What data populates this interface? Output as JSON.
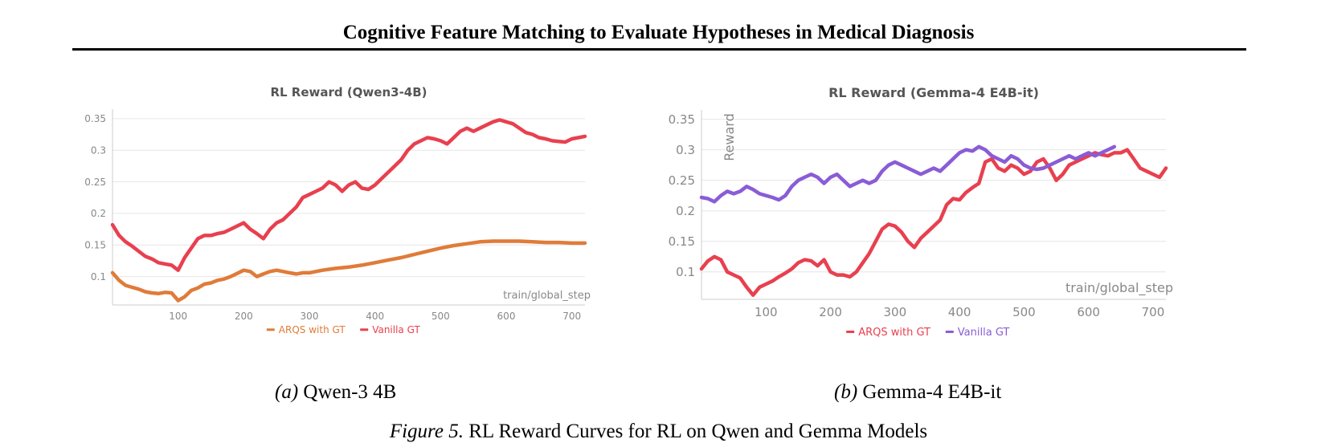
{
  "header": {
    "title": "Cognitive Feature Matching to Evaluate Hypotheses in Medical Diagnosis"
  },
  "subfigures": [
    {
      "tag": "(a)",
      "label": "Qwen-3 4B"
    },
    {
      "tag": "(b)",
      "label": "Gemma-4 E4B-it"
    }
  ],
  "caption": {
    "tag": "Figure 5.",
    "text": "RL Reward Curves for RL on Qwen and Gemma Models"
  },
  "chart_data": [
    {
      "type": "line",
      "title": "RL Reward (Qwen3-4B)",
      "xlabel": "train/global_step",
      "ylabel": "",
      "xlim": [
        0,
        720
      ],
      "ylim": [
        0.055,
        0.36
      ],
      "xticks": [
        100,
        200,
        300,
        400,
        500,
        600,
        700
      ],
      "yticks": [
        0.1,
        0.15,
        0.2,
        0.25,
        0.3,
        0.35
      ],
      "ytick_labels": [
        "0.1",
        "0.15",
        "0.2",
        "0.25",
        "0.3",
        "0.35"
      ],
      "grid": true,
      "legend_position": "bottom-center",
      "series": [
        {
          "name": "ARQS with GT",
          "color": "#e07b39",
          "x": [
            0,
            10,
            20,
            30,
            40,
            50,
            60,
            70,
            80,
            90,
            100,
            110,
            120,
            130,
            140,
            150,
            160,
            170,
            180,
            190,
            200,
            210,
            220,
            230,
            240,
            250,
            260,
            270,
            280,
            290,
            300,
            320,
            340,
            360,
            380,
            400,
            420,
            440,
            460,
            480,
            500,
            520,
            540,
            560,
            580,
            600,
            620,
            640,
            660,
            680,
            700,
            720
          ],
          "y": [
            0.106,
            0.094,
            0.086,
            0.083,
            0.08,
            0.076,
            0.074,
            0.073,
            0.075,
            0.074,
            0.062,
            0.068,
            0.078,
            0.082,
            0.088,
            0.09,
            0.094,
            0.096,
            0.1,
            0.105,
            0.11,
            0.108,
            0.1,
            0.104,
            0.108,
            0.11,
            0.108,
            0.106,
            0.104,
            0.106,
            0.106,
            0.11,
            0.113,
            0.115,
            0.118,
            0.122,
            0.126,
            0.13,
            0.135,
            0.14,
            0.145,
            0.149,
            0.152,
            0.155,
            0.156,
            0.156,
            0.156,
            0.155,
            0.154,
            0.154,
            0.153,
            0.153
          ]
        },
        {
          "name": "Vanilla GT",
          "color": "#e8404f",
          "x": [
            0,
            10,
            20,
            30,
            40,
            50,
            60,
            70,
            80,
            90,
            100,
            110,
            120,
            130,
            140,
            150,
            160,
            170,
            180,
            190,
            200,
            210,
            220,
            230,
            240,
            250,
            260,
            270,
            280,
            290,
            300,
            310,
            320,
            330,
            340,
            350,
            360,
            370,
            380,
            390,
            400,
            410,
            420,
            430,
            440,
            450,
            460,
            470,
            480,
            490,
            500,
            510,
            520,
            530,
            540,
            550,
            560,
            570,
            580,
            590,
            600,
            610,
            620,
            630,
            640,
            650,
            660,
            670,
            680,
            690,
            700,
            710,
            720
          ],
          "y": [
            0.182,
            0.165,
            0.155,
            0.148,
            0.14,
            0.132,
            0.128,
            0.122,
            0.12,
            0.118,
            0.11,
            0.13,
            0.145,
            0.16,
            0.165,
            0.165,
            0.168,
            0.17,
            0.175,
            0.18,
            0.185,
            0.175,
            0.168,
            0.16,
            0.175,
            0.185,
            0.19,
            0.2,
            0.21,
            0.225,
            0.23,
            0.235,
            0.24,
            0.25,
            0.245,
            0.235,
            0.245,
            0.25,
            0.24,
            0.238,
            0.245,
            0.255,
            0.265,
            0.275,
            0.285,
            0.3,
            0.31,
            0.315,
            0.32,
            0.318,
            0.315,
            0.31,
            0.32,
            0.33,
            0.335,
            0.33,
            0.335,
            0.34,
            0.345,
            0.348,
            0.345,
            0.342,
            0.335,
            0.328,
            0.325,
            0.32,
            0.318,
            0.315,
            0.314,
            0.313,
            0.318,
            0.32,
            0.322
          ]
        }
      ]
    },
    {
      "type": "line",
      "title": "RL Reward (Gemma-4 E4B-it)",
      "xlabel": "train/global_step",
      "ylabel": "Reward",
      "xlim": [
        0,
        720
      ],
      "ylim": [
        0.055,
        0.36
      ],
      "xticks": [
        100,
        200,
        300,
        400,
        500,
        600,
        700
      ],
      "yticks": [
        0.1,
        0.15,
        0.2,
        0.25,
        0.3,
        0.35
      ],
      "ytick_labels": [
        "0.1",
        "0.15",
        "0.2",
        "0.25",
        "0.3",
        "0.35"
      ],
      "grid": true,
      "legend_position": "bottom-center",
      "series": [
        {
          "name": "ARQS with GT",
          "color": "#e8404f",
          "x": [
            0,
            10,
            20,
            30,
            40,
            50,
            60,
            70,
            80,
            90,
            100,
            110,
            120,
            130,
            140,
            150,
            160,
            170,
            180,
            190,
            200,
            210,
            220,
            230,
            240,
            250,
            260,
            270,
            280,
            290,
            300,
            310,
            320,
            330,
            340,
            350,
            360,
            370,
            380,
            390,
            400,
            410,
            420,
            430,
            440,
            450,
            460,
            470,
            480,
            490,
            500,
            510,
            520,
            530,
            540,
            550,
            560,
            570,
            580,
            590,
            600,
            610,
            620,
            630,
            640,
            650,
            660,
            670,
            680,
            690,
            700,
            710,
            720
          ],
          "y": [
            0.105,
            0.118,
            0.125,
            0.12,
            0.1,
            0.095,
            0.09,
            0.075,
            0.062,
            0.075,
            0.08,
            0.085,
            0.092,
            0.098,
            0.105,
            0.115,
            0.12,
            0.118,
            0.11,
            0.12,
            0.1,
            0.095,
            0.095,
            0.092,
            0.1,
            0.115,
            0.13,
            0.15,
            0.17,
            0.178,
            0.175,
            0.165,
            0.15,
            0.14,
            0.155,
            0.165,
            0.175,
            0.185,
            0.21,
            0.22,
            0.218,
            0.23,
            0.238,
            0.245,
            0.28,
            0.285,
            0.27,
            0.265,
            0.275,
            0.27,
            0.26,
            0.265,
            0.28,
            0.285,
            0.27,
            0.25,
            0.26,
            0.275,
            0.28,
            0.285,
            0.29,
            0.295,
            0.292,
            0.29,
            0.295,
            0.295,
            0.3,
            0.285,
            0.27,
            0.265,
            0.26,
            0.255,
            0.27
          ]
        },
        {
          "name": "Vanilla GT",
          "color": "#8a5cd6",
          "x": [
            0,
            10,
            20,
            30,
            40,
            50,
            60,
            70,
            80,
            90,
            100,
            110,
            120,
            130,
            140,
            150,
            160,
            170,
            180,
            190,
            200,
            210,
            220,
            230,
            240,
            250,
            260,
            270,
            280,
            290,
            300,
            310,
            320,
            330,
            340,
            350,
            360,
            370,
            380,
            390,
            400,
            410,
            420,
            430,
            440,
            450,
            460,
            470,
            480,
            490,
            500,
            510,
            520,
            530,
            540,
            550,
            560,
            570,
            580,
            590,
            600,
            610,
            620,
            630,
            640
          ],
          "y": [
            0.222,
            0.22,
            0.215,
            0.225,
            0.232,
            0.228,
            0.232,
            0.24,
            0.235,
            0.228,
            0.225,
            0.222,
            0.218,
            0.225,
            0.24,
            0.25,
            0.255,
            0.26,
            0.255,
            0.245,
            0.255,
            0.26,
            0.25,
            0.24,
            0.245,
            0.25,
            0.245,
            0.25,
            0.265,
            0.275,
            0.28,
            0.275,
            0.27,
            0.265,
            0.26,
            0.265,
            0.27,
            0.265,
            0.275,
            0.285,
            0.295,
            0.3,
            0.298,
            0.305,
            0.3,
            0.29,
            0.285,
            0.28,
            0.29,
            0.285,
            0.275,
            0.27,
            0.268,
            0.27,
            0.275,
            0.28,
            0.285,
            0.29,
            0.285,
            0.29,
            0.295,
            0.29,
            0.295,
            0.3,
            0.305
          ]
        }
      ]
    }
  ]
}
